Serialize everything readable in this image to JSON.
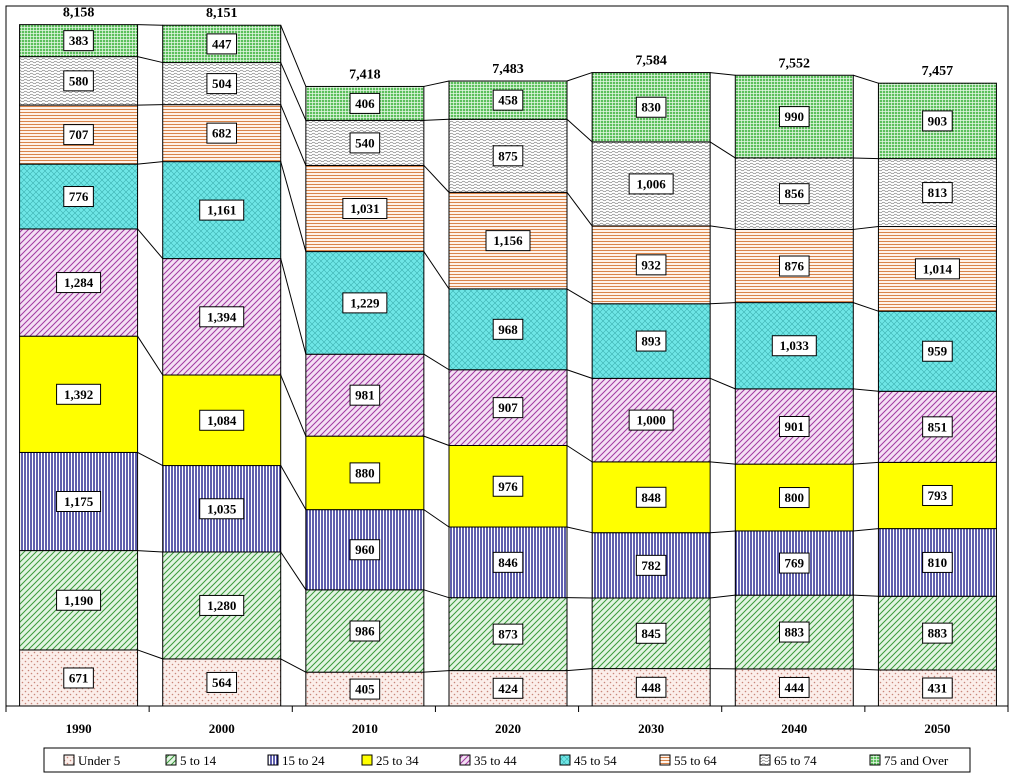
{
  "chart_data": {
    "type": "bar",
    "stacked": true,
    "categories": [
      "1990",
      "2000",
      "2010",
      "2020",
      "2030",
      "2040",
      "2050"
    ],
    "totals": [
      "8,158",
      "8,151",
      "7,418",
      "7,483",
      "7,584",
      "7,552",
      "7,457"
    ],
    "series": [
      {
        "name": "Under 5",
        "color": "#f4dcd6",
        "pattern": "dots",
        "values": [
          671,
          564,
          405,
          424,
          448,
          444,
          431
        ]
      },
      {
        "name": "5 to 14",
        "color": "#bfe8bf",
        "pattern": "diag",
        "values": [
          1190,
          1280,
          986,
          873,
          845,
          883,
          883
        ]
      },
      {
        "name": "15 to 24",
        "color": "#1c1c8c",
        "pattern": "vlines",
        "values": [
          1175,
          1035,
          960,
          846,
          782,
          769,
          810
        ]
      },
      {
        "name": "25 to 34",
        "color": "#ffff00",
        "pattern": "solid",
        "values": [
          1392,
          1084,
          880,
          976,
          848,
          800,
          793
        ]
      },
      {
        "name": "35 to 44",
        "color": "#e8b8e8",
        "pattern": "diag",
        "values": [
          1284,
          1394,
          981,
          907,
          1000,
          901,
          851
        ]
      },
      {
        "name": "45 to 54",
        "color": "#6ee6e6",
        "pattern": "cross",
        "values": [
          776,
          1161,
          1229,
          968,
          893,
          1033,
          959
        ]
      },
      {
        "name": "55 to 64",
        "color": "#f2b68c",
        "pattern": "hlines",
        "values": [
          707,
          682,
          1031,
          1156,
          932,
          876,
          1014
        ]
      },
      {
        "name": "65 to 74",
        "color": "#e6e6e6",
        "pattern": "wave",
        "values": [
          580,
          504,
          540,
          875,
          1006,
          856,
          813
        ]
      },
      {
        "name": "75 and Over",
        "color": "#5cbf5c",
        "pattern": "grid",
        "values": [
          383,
          447,
          406,
          458,
          830,
          990,
          903
        ]
      }
    ],
    "title": "",
    "xlabel": "",
    "ylabel": "",
    "ylim": [
      0,
      8700
    ],
    "grid": false,
    "legend_position": "bottom",
    "connector_lines": true
  }
}
